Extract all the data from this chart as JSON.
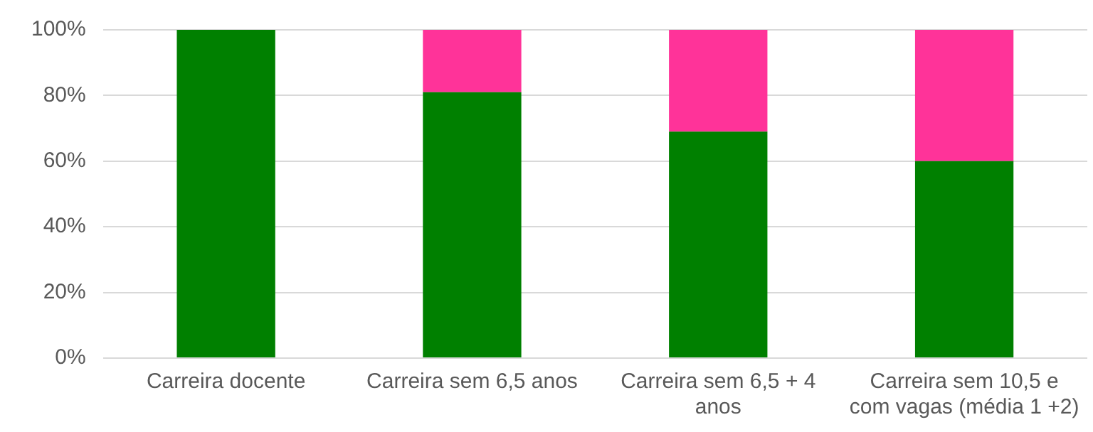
{
  "chart_data": {
    "type": "bar",
    "stacked": true,
    "categories": [
      "Carreira docente",
      "Carreira sem 6,5 anos",
      "Carreira sem 6,5 + 4 anos",
      "Carreira sem 10,5 e com vagas (média 1 +2)"
    ],
    "series": [
      {
        "color": "#008000",
        "values": [
          100,
          81,
          69,
          60
        ]
      },
      {
        "color": "#ff3399",
        "values": [
          0,
          19,
          31,
          40
        ]
      }
    ],
    "ylim": [
      0,
      100
    ],
    "yticks": [
      {
        "value": 0,
        "label": "0%"
      },
      {
        "value": 20,
        "label": "20%"
      },
      {
        "value": 40,
        "label": "40%"
      },
      {
        "value": 60,
        "label": "60%"
      },
      {
        "value": 80,
        "label": "80%"
      },
      {
        "value": 100,
        "label": "100%"
      }
    ],
    "grid": "y",
    "legend": false
  }
}
